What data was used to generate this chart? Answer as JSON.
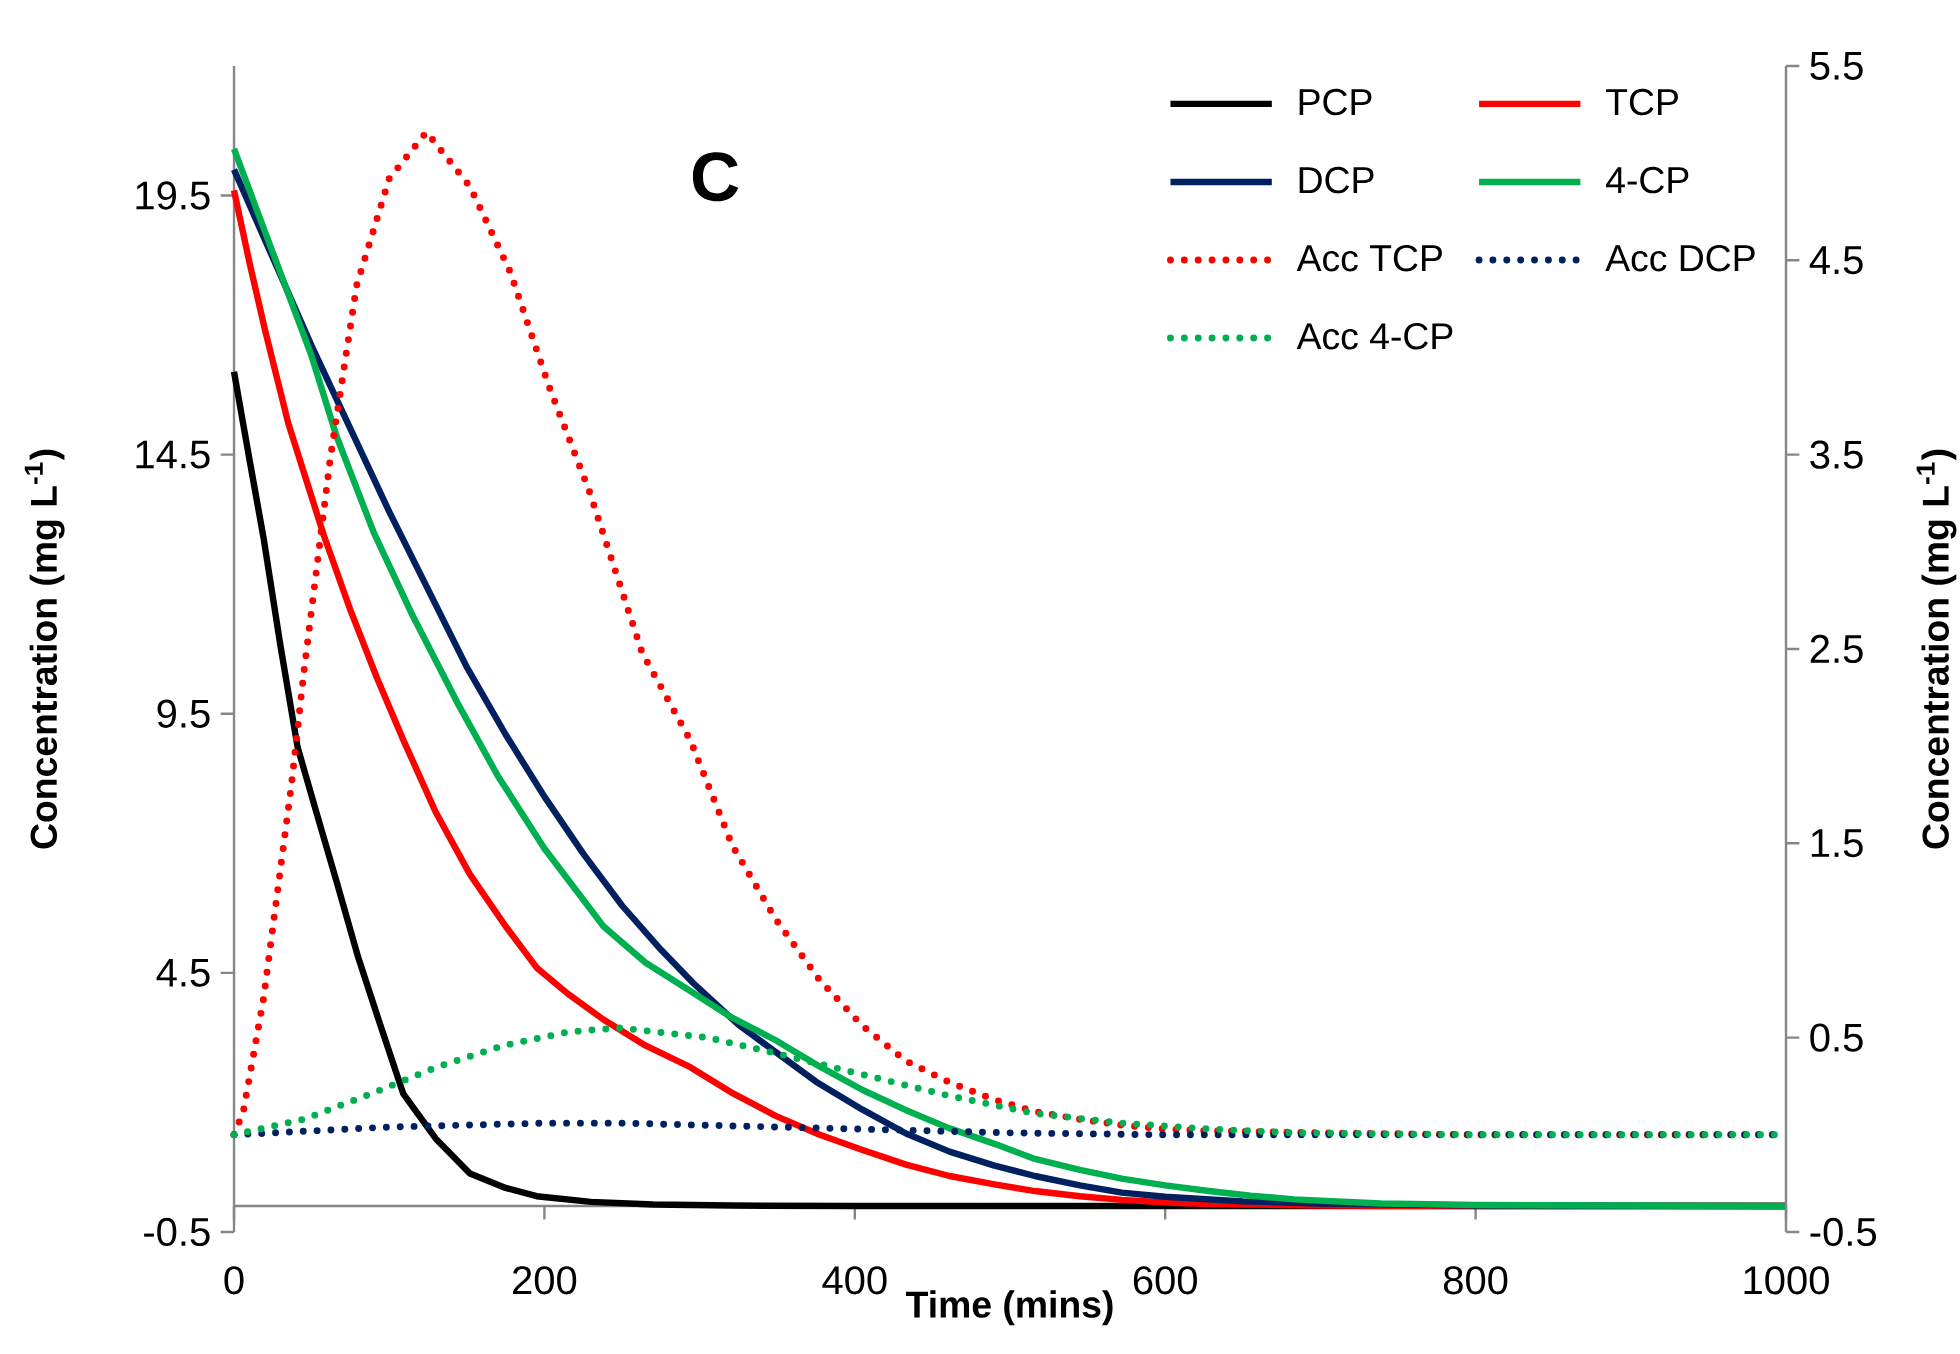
{
  "chart_data": {
    "type": "line",
    "xlabel": "Time (mins)",
    "ylabel": "Concentration (mg L$^{-1}$)",
    "y2label": "Concentration (mg L$^{-1}$)",
    "annotations": [
      "C"
    ],
    "xlim": [
      0,
      1000
    ],
    "xticks": [
      0,
      200,
      400,
      600,
      800,
      1000
    ],
    "ylim": [
      -0.5,
      22
    ],
    "yticks": [
      -0.5,
      4.5,
      9.5,
      14.5,
      19.5
    ],
    "y2lim": [
      -0.5,
      5.5
    ],
    "y2ticks": [
      -0.5,
      0.5,
      1.5,
      2.5,
      3.5,
      4.5,
      5.5
    ],
    "legend": "top right",
    "marker": "none",
    "series": [
      {
        "name": "PCP",
        "color": "#000000",
        "line_style": "solid",
        "x": [
          0,
          10,
          19,
          30,
          41,
          55,
          66,
          80,
          92,
          109,
          130,
          152,
          175,
          195,
          230,
          270,
          320,
          400,
          500,
          700,
          1000
        ],
        "values": [
          16.1,
          14.4,
          12.9,
          10.8,
          8.85,
          7.4,
          6.27,
          4.8,
          3.7,
          2.17,
          1.3,
          0.63,
          0.35,
          0.19,
          0.08,
          0.03,
          0.01,
          0,
          0,
          0,
          0
        ]
      },
      {
        "name": "TCP",
        "color": "#ff0000",
        "line_style": "solid",
        "x": [
          0,
          10,
          20,
          35,
          58,
          75,
          92,
          109,
          130,
          152,
          175,
          195,
          215,
          238,
          265,
          294,
          320,
          349,
          377,
          405,
          433,
          461,
          490,
          516,
          545,
          572,
          600,
          628,
          700,
          800,
          1000
        ],
        "values": [
          19.6,
          18.2,
          16.9,
          15.1,
          12.93,
          11.5,
          10.2,
          9.0,
          7.6,
          6.4,
          5.4,
          4.6,
          4.1,
          3.6,
          3.1,
          2.68,
          2.2,
          1.74,
          1.38,
          1.08,
          0.8,
          0.58,
          0.42,
          0.29,
          0.19,
          0.12,
          0.07,
          0.04,
          0.01,
          0,
          0
        ]
      },
      {
        "name": "DCP",
        "color": "#002060",
        "line_style": "solid",
        "x": [
          0,
          25,
          50,
          75,
          100,
          125,
          150,
          175,
          200,
          225,
          250,
          275,
          296,
          325,
          350,
          375,
          405,
          433,
          461,
          490,
          516,
          545,
          572,
          600,
          650,
          700,
          800,
          1000
        ],
        "values": [
          20.0,
          18.3,
          16.6,
          15.0,
          13.4,
          11.9,
          10.4,
          9.1,
          7.9,
          6.8,
          5.8,
          4.95,
          4.3,
          3.5,
          2.95,
          2.4,
          1.86,
          1.4,
          1.05,
          0.78,
          0.58,
          0.4,
          0.26,
          0.18,
          0.09,
          0.05,
          0.01,
          0
        ]
      },
      {
        "name": "4-CP",
        "color": "#00b050",
        "line_style": "solid",
        "x": [
          0,
          25,
          50,
          66,
          90,
          115,
          143.6,
          170,
          200,
          238,
          265,
          294,
          320,
          349,
          377,
          405,
          433,
          461,
          490,
          516,
          545,
          572,
          600,
          628,
          655,
          683,
          739,
          800,
          1000
        ],
        "values": [
          20.4,
          18.4,
          16.4,
          14.86,
          13.0,
          11.4,
          9.73,
          8.3,
          6.9,
          5.4,
          4.7,
          4.15,
          3.65,
          3.2,
          2.7,
          2.24,
          1.85,
          1.5,
          1.2,
          0.91,
          0.7,
          0.53,
          0.4,
          0.29,
          0.2,
          0.13,
          0.05,
          0.02,
          0
        ]
      },
      {
        "name": "Acc TCP",
        "color": "#ff0000",
        "line_style": "dotted",
        "axis": "y2",
        "x": [
          0,
          6,
          19,
          37,
          45,
          62,
          79,
          100,
          124,
          152,
          178,
          203,
          229,
          263,
          294,
          321,
          349,
          377,
          405,
          433,
          461,
          490,
          516,
          545,
          572,
          600,
          628,
          700,
          800,
          1000
        ],
        "values": [
          0,
          0.12,
          0.7,
          1.8,
          2.38,
          3.48,
          4.37,
          4.92,
          5.16,
          4.88,
          4.44,
          3.85,
          3.31,
          2.48,
          2.03,
          1.49,
          1.11,
          0.8,
          0.56,
          0.38,
          0.27,
          0.18,
          0.12,
          0.08,
          0.05,
          0.03,
          0.02,
          0.01,
          0,
          0
        ]
      },
      {
        "name": "Acc DCP",
        "color": "#002060",
        "line_style": "dotted",
        "axis": "y2",
        "x": [
          0,
          50,
          100,
          150,
          200,
          250,
          300,
          350,
          400,
          500,
          600,
          1000
        ],
        "values": [
          0,
          0.02,
          0.04,
          0.05,
          0.06,
          0.06,
          0.05,
          0.04,
          0.03,
          0.01,
          0,
          0
        ]
      },
      {
        "name": "Acc 4-CP",
        "color": "#00b050",
        "line_style": "dotted",
        "axis": "y2",
        "x": [
          0,
          45,
          88,
          131,
          174,
          216,
          249,
          305,
          349,
          405,
          461,
          516,
          572,
          628,
          683,
          800,
          1000
        ],
        "values": [
          0,
          0.08,
          0.21,
          0.35,
          0.46,
          0.53,
          0.55,
          0.5,
          0.42,
          0.31,
          0.2,
          0.11,
          0.06,
          0.03,
          0.01,
          0,
          0
        ]
      }
    ]
  }
}
